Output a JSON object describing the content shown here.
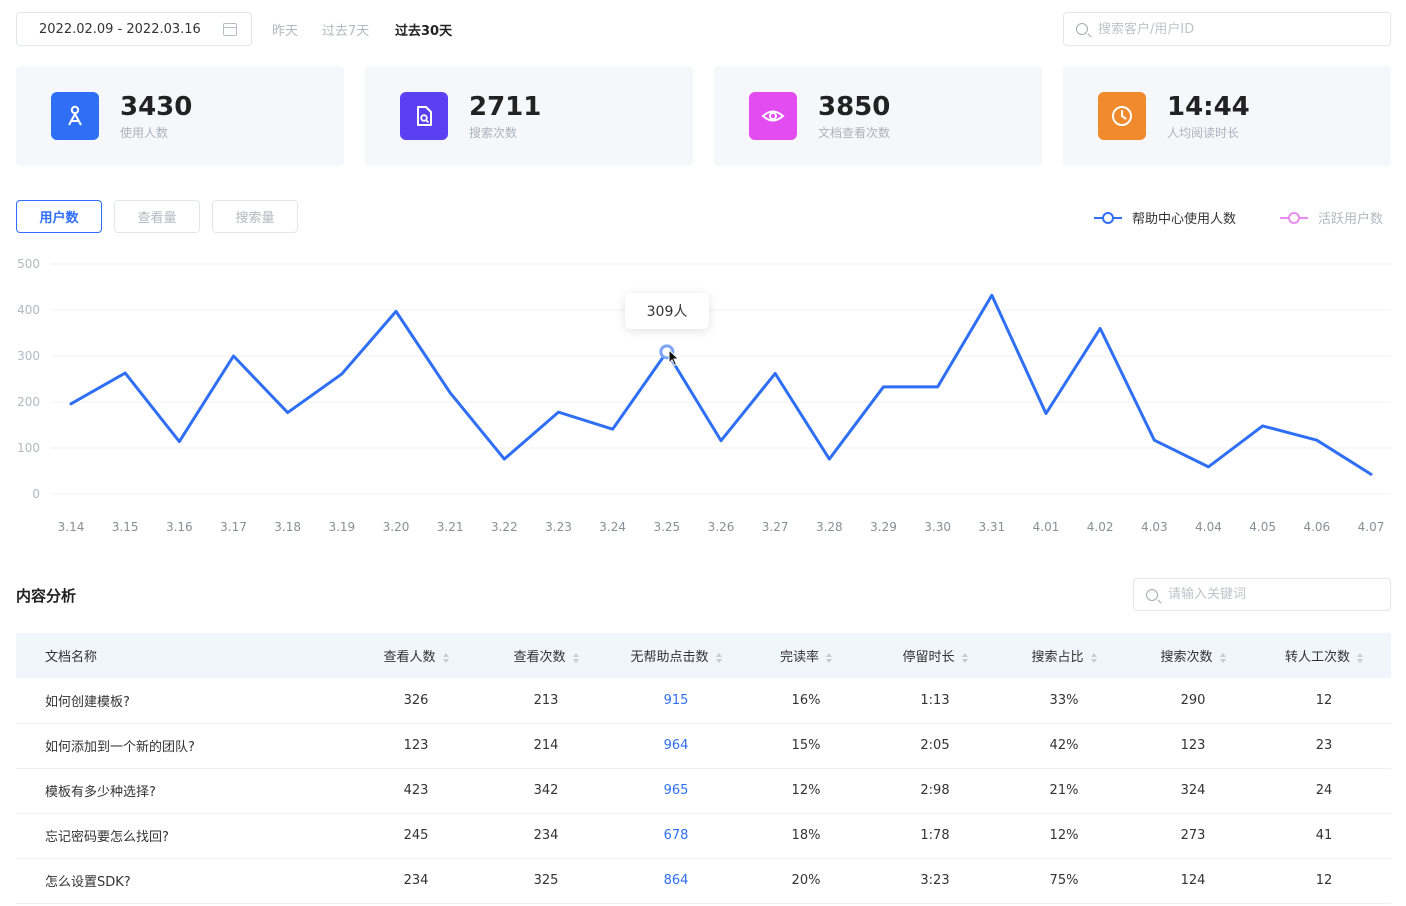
{
  "filters": {
    "date_range": "2022.02.09 - 2022.03.16",
    "quick": [
      "昨天",
      "过去7天",
      "过去30天"
    ],
    "quick_active": "过去30天",
    "search_placeholder": "搜索客户/用户ID"
  },
  "stats": [
    {
      "value": "3430",
      "label": "使用人数",
      "icon": "user-group-icon",
      "color": "#2f6ff5"
    },
    {
      "value": "2711",
      "label": "搜索次数",
      "icon": "document-search-icon",
      "color": "#5b3ff0"
    },
    {
      "value": "3850",
      "label": "文档查看次数",
      "icon": "eye-icon",
      "color": "#e24cf0"
    },
    {
      "value": "14:44",
      "label": "人均阅读时长",
      "icon": "clock-icon",
      "color": "#f08a2c"
    }
  ],
  "chart_tabs": [
    "用户数",
    "查看量",
    "搜索量"
  ],
  "chart_tab_active": "用户数",
  "legend": [
    {
      "label": "帮助中心使用人数",
      "color": "#2f6ff5"
    },
    {
      "label": "活跃用户数",
      "color": "#e98ef0"
    }
  ],
  "tooltip": "309人",
  "chart_data": {
    "type": "line",
    "categories": [
      "3.14",
      "3.15",
      "3.16",
      "3.17",
      "3.18",
      "3.19",
      "3.20",
      "3.21",
      "3.22",
      "3.23",
      "3.24",
      "3.25",
      "3.26",
      "3.27",
      "3.28",
      "3.29",
      "3.30",
      "3.31",
      "4.01",
      "4.02",
      "4.03",
      "4.04",
      "4.05",
      "4.06",
      "4.07"
    ],
    "series": [
      {
        "name": "帮助中心使用人数",
        "color": "#2f6ff5",
        "values": [
          196,
          263,
          114,
          300,
          177,
          261,
          397,
          220,
          76,
          178,
          141,
          309,
          116,
          262,
          76,
          233,
          233,
          432,
          175,
          360,
          117,
          59,
          148,
          117,
          43
        ]
      }
    ],
    "y_ticks": [
      "500",
      "400",
      "300",
      "200",
      "100",
      "0"
    ],
    "ylim": [
      0,
      500
    ],
    "highlight_index": 11,
    "grid": true
  },
  "content": {
    "title": "内容分析",
    "search_placeholder": "请输入关键词",
    "columns": [
      "文档名称",
      "查看人数",
      "查看次数",
      "无帮助点击数",
      "完读率",
      "停留时长",
      "搜索占比",
      "搜索次数",
      "转人工次数"
    ],
    "rows": [
      [
        "如何创建模板?",
        "326",
        "213",
        "915",
        "16%",
        "1:13",
        "33%",
        "290",
        "12"
      ],
      [
        "如何添加到一个新的团队?",
        "123",
        "214",
        "964",
        "15%",
        "2:05",
        "42%",
        "123",
        "23"
      ],
      [
        "模板有多少种选择?",
        "423",
        "342",
        "965",
        "12%",
        "2:98",
        "21%",
        "324",
        "24"
      ],
      [
        "忘记密码要怎么找回?",
        "245",
        "234",
        "678",
        "18%",
        "1:78",
        "12%",
        "273",
        "41"
      ],
      [
        "怎么设置SDK?",
        "234",
        "325",
        "864",
        "20%",
        "3:23",
        "75%",
        "124",
        "12"
      ]
    ]
  }
}
